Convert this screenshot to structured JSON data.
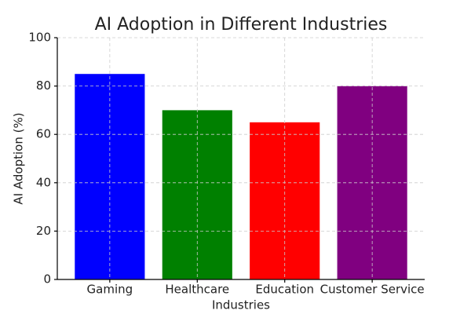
{
  "chart_data": {
    "type": "bar",
    "title": "AI Adoption in Different Industries",
    "x_label": "Industries",
    "y_label": "AI Adoption (%)",
    "categories": [
      "Gaming",
      "Healthcare",
      "Education",
      "Customer Service"
    ],
    "values": [
      85,
      70,
      65,
      80
    ],
    "colors": [
      "#0000ff",
      "#008000",
      "#ff0000",
      "#800080"
    ],
    "ylim": [
      0,
      100
    ],
    "yticks": [
      0,
      20,
      40,
      60,
      80,
      100
    ],
    "grid": true
  }
}
